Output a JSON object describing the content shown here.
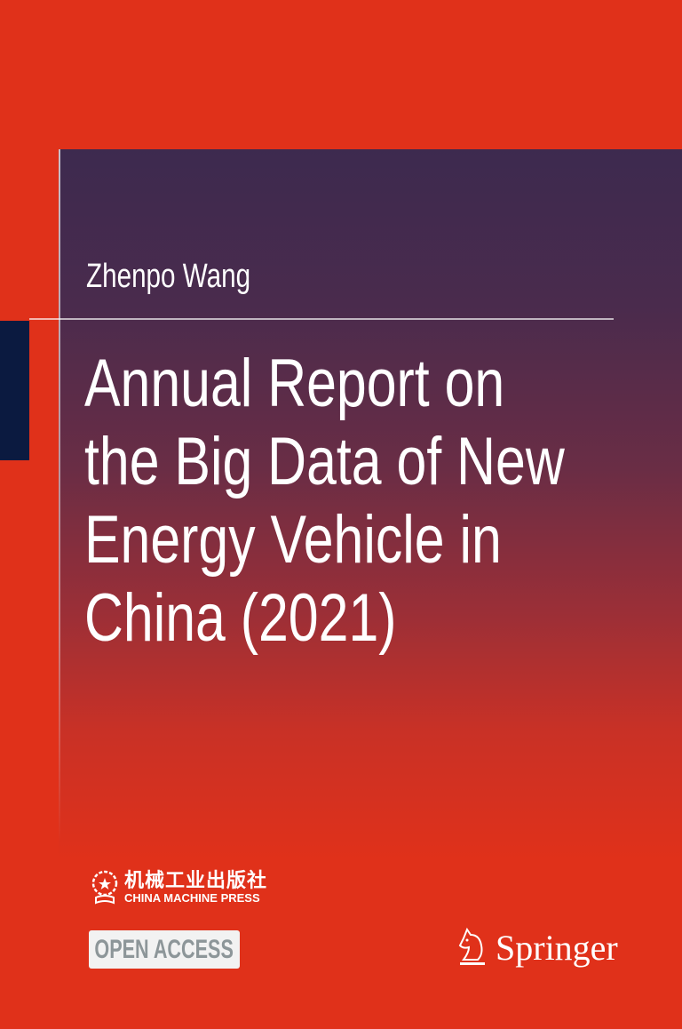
{
  "cover": {
    "author": "Zhenpo Wang",
    "title_lines": [
      "Annual Report on",
      "the Big Data of New",
      "Energy Vehicle in",
      "China (2021)"
    ],
    "publisher_cn": "机械工业出版社",
    "publisher_en": "CHINA MACHINE PRESS",
    "open_access_label": "OPEN ACCESS",
    "springer_label": "Springer",
    "colors": {
      "background": "#e0311a",
      "panel_top": "#3d2a4f",
      "accent_block": "#0b1a40"
    }
  }
}
